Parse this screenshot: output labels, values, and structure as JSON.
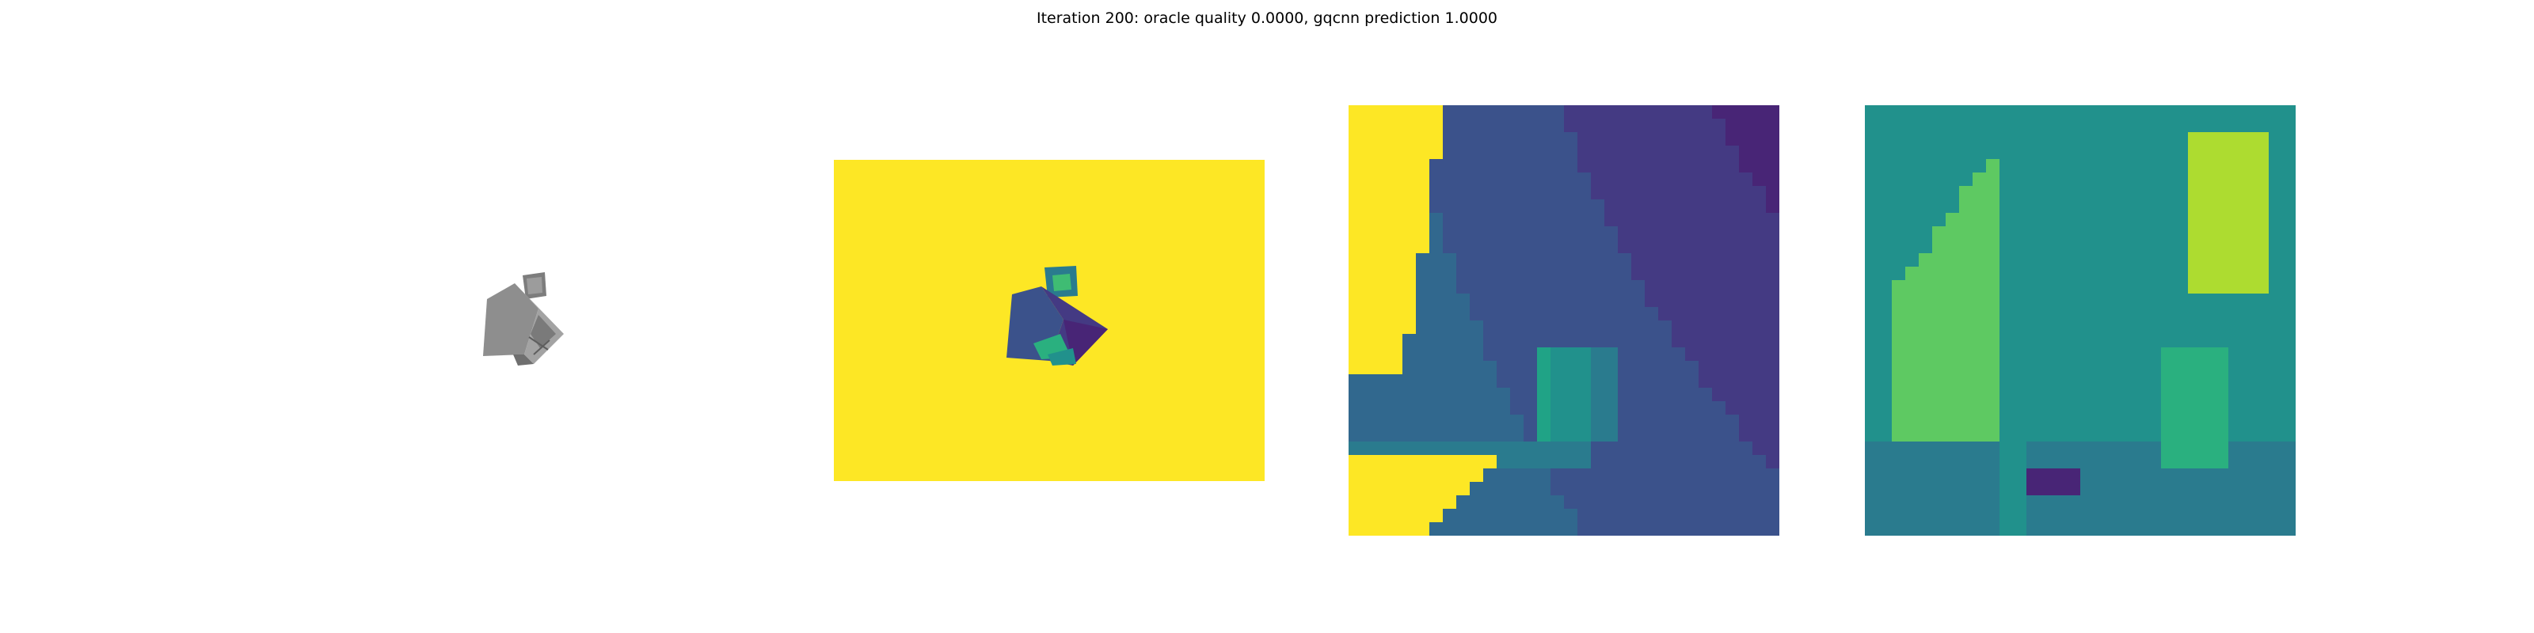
{
  "figure": {
    "title": "Iteration 200: oracle quality 0.0000, gqcnn prediction 1.0000"
  },
  "panels": [
    {
      "kind": "rendered-object-image",
      "colors": {
        "object": "#8c8c8c",
        "dark": "#6b6b6b",
        "light": "#b4b4b4"
      }
    },
    {
      "kind": "depth-image",
      "colors": {
        "background": "#fde725"
      }
    },
    {
      "kind": "depth-crop-heatmap"
    },
    {
      "kind": "depth-crop-heatmap-alt"
    }
  ],
  "colormap": "viridis"
}
